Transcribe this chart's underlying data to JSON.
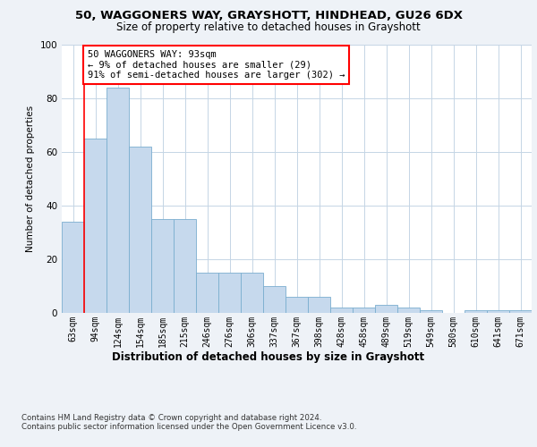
{
  "title1": "50, WAGGONERS WAY, GRAYSHOTT, HINDHEAD, GU26 6DX",
  "title2": "Size of property relative to detached houses in Grayshott",
  "xlabel": "Distribution of detached houses by size in Grayshott",
  "ylabel": "Number of detached properties",
  "bin_labels": [
    "63sqm",
    "94sqm",
    "124sqm",
    "154sqm",
    "185sqm",
    "215sqm",
    "246sqm",
    "276sqm",
    "306sqm",
    "337sqm",
    "367sqm",
    "398sqm",
    "428sqm",
    "458sqm",
    "489sqm",
    "519sqm",
    "549sqm",
    "580sqm",
    "610sqm",
    "641sqm",
    "671sqm"
  ],
  "bar_heights": [
    34,
    65,
    84,
    62,
    35,
    35,
    15,
    15,
    15,
    10,
    6,
    6,
    2,
    2,
    3,
    2,
    1,
    0,
    1,
    1,
    1
  ],
  "bar_color": "#c6d9ed",
  "bar_edge_color": "#7aaecf",
  "annotation_text": "50 WAGGONERS WAY: 93sqm\n← 9% of detached houses are smaller (29)\n91% of semi-detached houses are larger (302) →",
  "annotation_box_color": "white",
  "annotation_box_edge_color": "red",
  "ylim": [
    0,
    100
  ],
  "yticks": [
    0,
    20,
    40,
    60,
    80,
    100
  ],
  "footer1": "Contains HM Land Registry data © Crown copyright and database right 2024.",
  "footer2": "Contains public sector information licensed under the Open Government Licence v3.0.",
  "bg_color": "#eef2f7",
  "plot_bg_color": "white",
  "grid_color": "#c5d5e5"
}
